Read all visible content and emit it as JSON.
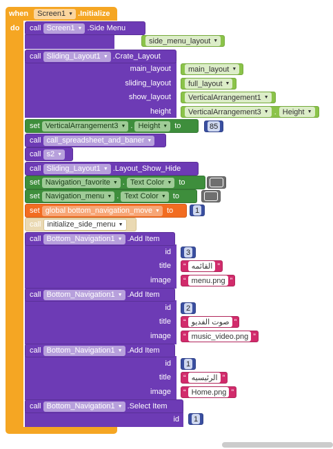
{
  "event": {
    "when": "when",
    "screen": "Screen1",
    "action": ".Initialize",
    "do": "do"
  },
  "kw": {
    "call": "call",
    "set": "set",
    "to": "to",
    "layout": "layout",
    "dot": "."
  },
  "side_menu": {
    "component": "Screen1",
    "method": ".Side Menu",
    "arg": "side_menu_layout"
  },
  "sliding": {
    "component": "Sliding_Layout1",
    "method": ".Crate_Layout",
    "slots": [
      "main_layout",
      "sliding_layout",
      "show_layout",
      "height"
    ],
    "values": [
      "main_layout",
      "full_layout",
      "VerticalArrangement1",
      "VerticalArrangement3"
    ],
    "height_prop": "Height"
  },
  "set_height": {
    "component": "VerticalArrangement3",
    "prop": "Height",
    "value": "85"
  },
  "call_spreadsheet": "call_spreadsheet_and_baner",
  "call_s2": "s2",
  "layout_show": {
    "component": "Sliding_Layout1",
    "method": ".Layout_Show_Hide"
  },
  "nav_fav": {
    "component": "Navigation_favorite",
    "prop": "Text Color"
  },
  "nav_menu": {
    "component": "Navigation_menu",
    "prop": "Text Color"
  },
  "global_set": {
    "var": "global bottom_navigation_move",
    "value": "1"
  },
  "init_side": "initialize_side_menu",
  "add_items": [
    {
      "component": "Bottom_Navigation1",
      "method": ".Add Item",
      "id": "3",
      "title": "القائمه",
      "image": "menu.png"
    },
    {
      "component": "Bottom_Navigation1",
      "method": ".Add Item",
      "id": "2",
      "title": "صوت الفديو",
      "image": "music_video.png"
    },
    {
      "component": "Bottom_Navigation1",
      "method": ".Add Item",
      "id": "1",
      "title": "الرئيسيه",
      "image": "Home.png"
    }
  ],
  "item_slots": {
    "id": "id",
    "title": "title",
    "image": "image"
  },
  "select_item": {
    "component": "Bottom_Navigation1",
    "method": ".Select Item",
    "id": "1",
    "slot": "id"
  },
  "quote": "“",
  "quote_close": "”",
  "colors": {
    "event": "#f5a623",
    "procedure": "#6d3bb5",
    "setter": "#3e8e3c",
    "global": "#f26c21",
    "text": "#d12b6b",
    "number": "#3a4fa0",
    "logic_value": "#8bc34a"
  }
}
